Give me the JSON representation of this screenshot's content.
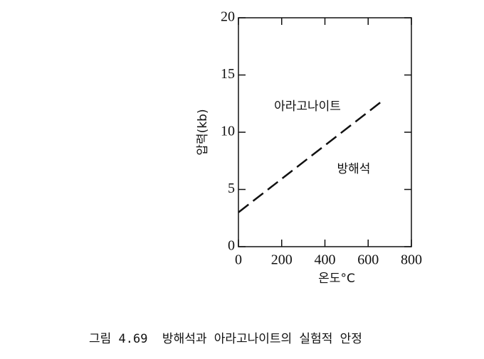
{
  "chart_data": {
    "type": "line",
    "x_label": "온도°C",
    "y_label": "압력(kb)",
    "x": [
      0,
      670
    ],
    "series": [
      {
        "color": "#111111",
        "values": [
          3,
          12.8
        ],
        "dash": true
      }
    ],
    "xlim": [
      0,
      800
    ],
    "xticks": [
      0,
      200,
      400,
      600,
      800
    ],
    "ylim": [
      0,
      20
    ],
    "yticks": [
      0,
      5,
      10,
      15,
      20
    ],
    "annotations": [
      "아라고나이트",
      "방해석"
    ],
    "caption": "그림 4.69  방해석과 아라고나이트의 실험적 안정"
  }
}
